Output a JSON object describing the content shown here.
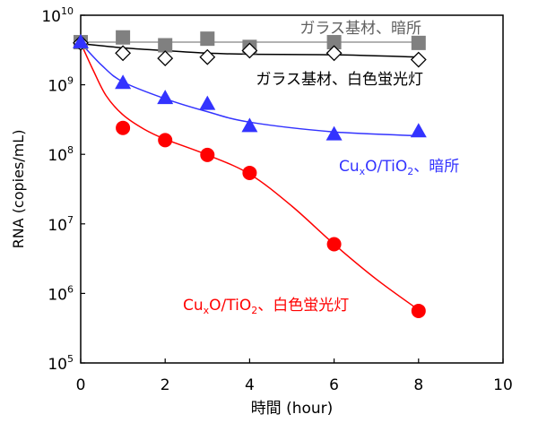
{
  "chart_data": {
    "type": "scatter",
    "xlabel": "時間 (hour)",
    "ylabel": "RNA (copies/mL)",
    "xlim": [
      0,
      10
    ],
    "ylim": [
      100000,
      10000000000
    ],
    "yscale": "log",
    "grid": false,
    "xticks": [
      "0",
      "2",
      "4",
      "6",
      "8",
      "10"
    ],
    "yticks": [
      {
        "base": "10",
        "exp": "5"
      },
      {
        "base": "10",
        "exp": "6"
      },
      {
        "base": "10",
        "exp": "7"
      },
      {
        "base": "10",
        "exp": "8"
      },
      {
        "base": "10",
        "exp": "9"
      },
      {
        "base": "10",
        "exp": "10"
      }
    ],
    "series": [
      {
        "name": "ガラス基材、暗所",
        "label_parts": [
          "ガラス基材、暗所"
        ],
        "color": "#808080",
        "line_color": "#999999",
        "marker": "square",
        "x": [
          0,
          1,
          2,
          3,
          4,
          6,
          8
        ],
        "y": [
          4100000000.0,
          4800000000.0,
          3700000000.0,
          4600000000.0,
          3500000000.0,
          4100000000.0,
          4000000000.0
        ],
        "fit_x": [
          0,
          8
        ],
        "fit_y": [
          4100000000.0,
          4100000000.0
        ]
      },
      {
        "name": "ガラス基材、白色蛍光灯",
        "label_parts": [
          "ガラス基材、白色蛍光灯"
        ],
        "color": "#000000",
        "line_color": "#000000",
        "marker": "diamond-open",
        "x": [
          0,
          1,
          2,
          3,
          4,
          6,
          8
        ],
        "y": [
          4000000000.0,
          2850000000.0,
          2400000000.0,
          2500000000.0,
          3100000000.0,
          2850000000.0,
          2300000000.0
        ],
        "fit_x": [
          0,
          1,
          2,
          3,
          4,
          6,
          8
        ],
        "fit_y": [
          3900000000.0,
          3400000000.0,
          3100000000.0,
          2850000000.0,
          2750000000.0,
          2700000000.0,
          2500000000.0
        ]
      },
      {
        "name": "CuxO/TiO2、暗所",
        "label_parts": [
          "Cu",
          "x",
          "O/TiO",
          "2",
          "、暗所"
        ],
        "color": "#3333ff",
        "line_color": "#3333ff",
        "marker": "triangle",
        "x": [
          0,
          1,
          2,
          3,
          4,
          6,
          8
        ],
        "y": [
          4000000000.0,
          1040000000.0,
          630000000.0,
          520000000.0,
          250000000.0,
          190000000.0,
          210000000.0
        ],
        "fit_x": [
          0,
          0.5,
          1,
          2,
          3,
          4,
          6,
          8
        ],
        "fit_y": [
          4000000000.0,
          1900000000.0,
          1100000000.0,
          630000000.0,
          410000000.0,
          290000000.0,
          210000000.0,
          185000000.0
        ]
      },
      {
        "name": "CuxO/TiO2、白色蛍光灯",
        "label_parts": [
          "Cu",
          "x",
          "O/TiO",
          "2",
          "、白色蛍光灯"
        ],
        "color": "#ff0000",
        "line_color": "#ff0000",
        "marker": "circle",
        "x": [
          1,
          2,
          3,
          4,
          6,
          8
        ],
        "y": [
          240000000.0,
          160000000.0,
          98000000.0,
          54000000.0,
          5100000.0,
          560000.0
        ],
        "fit_x": [
          0,
          0.3,
          0.6,
          1,
          1.5,
          2,
          3,
          4,
          5,
          6,
          7,
          8
        ],
        "fit_y": [
          4000000000.0,
          1600000000.0,
          700000000.0,
          370000000.0,
          230000000.0,
          165000000.0,
          98000000.0,
          52000000.0,
          18000000.0,
          5100000.0,
          1600000.0,
          580000.0
        ]
      }
    ]
  }
}
